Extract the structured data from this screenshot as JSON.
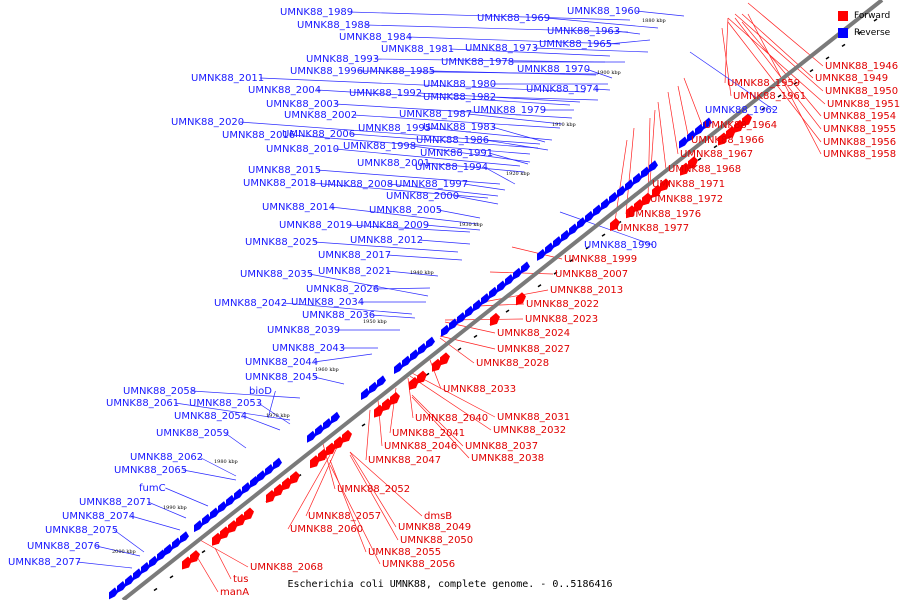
{
  "caption": "Escherichia coli UMNK88, complete genome. - 0..5186416",
  "legend": [
    {
      "label": "Forward",
      "color": "#ff0000"
    },
    {
      "label": "Reverse",
      "color": "#0000ff"
    }
  ],
  "colors": {
    "forward": "#ff0000",
    "reverse": "#0000ff",
    "forward_label": "#e00000",
    "reverse_label": "#1a1aff",
    "backbone": "#7a7a7a"
  },
  "axis_ticks": [
    "1880 kbp",
    "1900 kbp",
    "1910 kbp",
    "1920 kbp",
    "1930 kbp",
    "1940 kbp",
    "1950 kbp",
    "1960 kbp",
    "1970 kbp",
    "1980 kbp",
    "1990 kbp",
    "2000 kbp"
  ],
  "forward_labels": [
    "UMNK88_1946",
    "UMNK88_1949",
    "UMNK88_1959",
    "UMNK88_1950",
    "UMNK88_1961",
    "UMNK88_1951",
    "UMNK88_1954",
    "UMNK88_1955",
    "UMNK88_1956",
    "UMNK88_1958",
    "UMNK88_1964",
    "UMNK88_1966",
    "UMNK88_1967",
    "UMNK88_1968",
    "UMNK88_1971",
    "UMNK88_1972",
    "UMNK88_1976",
    "UMNK88_1977",
    "UMNK88_1999",
    "UMNK88_2007",
    "UMNK88_2013",
    "UMNK88_2022",
    "UMNK88_2023",
    "UMNK88_2024",
    "UMNK88_2027",
    "UMNK88_2028",
    "UMNK88_2033",
    "UMNK88_2031",
    "UMNK88_2040",
    "UMNK88_2032",
    "UMNK88_2041",
    "UMNK88_2046",
    "UMNK88_2037",
    "UMNK88_2038",
    "UMNK88_2047",
    "UMNK88_2052",
    "UMNK88_2057",
    "dmsB",
    "UMNK88_2060",
    "UMNK88_2049",
    "UMNK88_2050",
    "UMNK88_2055",
    "UMNK88_2056",
    "UMNK88_2068",
    "tus",
    "manA"
  ],
  "reverse_labels": [
    "UMNK88_1989",
    "UMNK88_1969",
    "UMNK88_1960",
    "UMNK88_1988",
    "UMNK88_1963",
    "UMNK88_1984",
    "UMNK88_1965",
    "UMNK88_1981",
    "UMNK88_1973",
    "UMNK88_1993",
    "UMNK88_1978",
    "UMNK88_1996",
    "UMNK88_1985",
    "UMNK88_1970",
    "UMNK88_2011",
    "UMNK88_1980",
    "UMNK88_2004",
    "UMNK88_1992",
    "UMNK88_1982",
    "UMNK88_1974",
    "UMNK88_1962",
    "UMNK88_2003",
    "UMNK88_1987",
    "UMNK88_1979",
    "UMNK88_2002",
    "UMNK88_2020",
    "UMNK88_1995",
    "UMNK88_1983",
    "UMNK88_2016",
    "UMNK88_2006",
    "UMNK88_1986",
    "UMNK88_1998",
    "UMNK88_1991",
    "UMNK88_2010",
    "UMNK88_2001",
    "UMNK88_2015",
    "UMNK88_1994",
    "UMNK88_2018",
    "UMNK88_2008",
    "UMNK88_1997",
    "UMNK88_2000",
    "UMNK88_2014",
    "UMNK88_2005",
    "UMNK88_2019",
    "UMNK88_2009",
    "UMNK88_1990",
    "UMNK88_2025",
    "UMNK88_2012",
    "UMNK88_2017",
    "UMNK88_2021",
    "UMNK88_2035",
    "UMNK88_2026",
    "UMNK88_2042",
    "UMNK88_2034",
    "UMNK88_2036",
    "UMNK88_2039",
    "UMNK88_2043",
    "UMNK88_2044",
    "UMNK88_2045",
    "UMNK88_2058",
    "bioD",
    "UMNK88_2061",
    "UMNK88_2053",
    "UMNK88_2054",
    "UMNK88_2059",
    "UMNK88_2062",
    "UMNK88_2065",
    "fumC",
    "UMNK88_2071",
    "UMNK88_2074",
    "UMNK88_2075",
    "UMNK88_2076",
    "UMNK88_2077"
  ]
}
